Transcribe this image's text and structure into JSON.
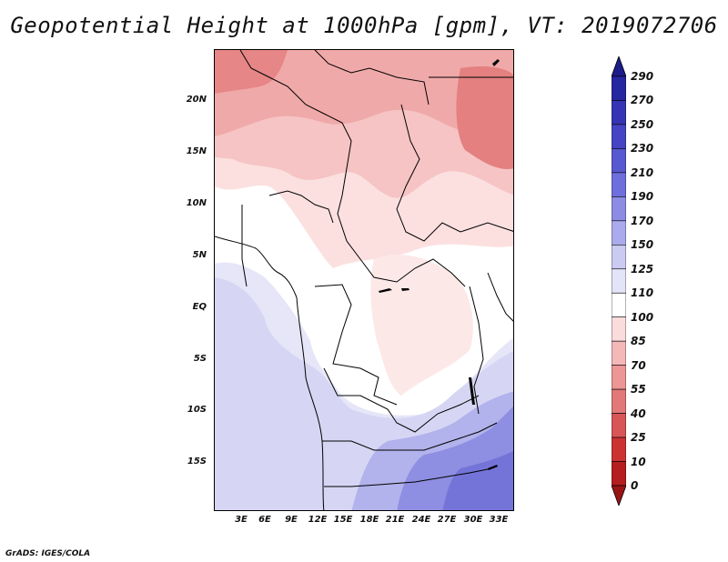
{
  "title": "Geopotential Height at 1000hPa [gpm], VT: 2019072706",
  "footer": "GrADS: IGES/COLA",
  "map": {
    "lat_labels": [
      "20N",
      "15N",
      "10N",
      "5N",
      "EQ",
      "5S",
      "10S",
      "15S"
    ],
    "lon_labels": [
      "3E",
      "6E",
      "9E",
      "12E",
      "15E",
      "18E",
      "21E",
      "24E",
      "27E",
      "30E",
      "33E"
    ]
  },
  "colorbar": {
    "levels": [
      "290",
      "270",
      "250",
      "230",
      "210",
      "190",
      "170",
      "150",
      "125",
      "110",
      "100",
      "85",
      "70",
      "55",
      "40",
      "25",
      "10",
      "0"
    ],
    "colors": [
      "#1c1c8a",
      "#2626a0",
      "#3434b4",
      "#4444c4",
      "#5858d0",
      "#6e6edc",
      "#8c8ce4",
      "#aaaaec",
      "#cacaf2",
      "#e4e4f8",
      "#ffffff",
      "#fbdcdc",
      "#f4b8b8",
      "#ec9696",
      "#e27878",
      "#d85656",
      "#cc3232",
      "#b41e1e",
      "#9a1414"
    ]
  }
}
